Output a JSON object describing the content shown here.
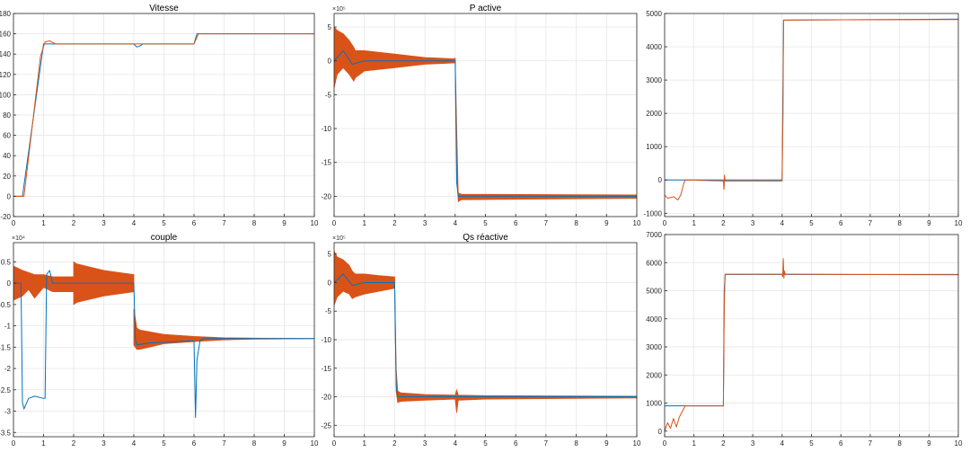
{
  "figure": {
    "background": "#ffffff",
    "axes_bg": "#ffffff",
    "grid_color": "#e3e3e3",
    "axis_color": "#262626"
  },
  "colors": {
    "series_blue": "#0072bd",
    "series_orange": "#d95319"
  },
  "chart_data": [
    {
      "id": "vitesse",
      "type": "line",
      "title": "Vitesse",
      "xlabel": "",
      "ylabel": "",
      "multiplier": "",
      "xlim": [
        0,
        10
      ],
      "ylim": [
        -20,
        180
      ],
      "xticks": [
        0,
        1,
        2,
        3,
        4,
        5,
        6,
        7,
        8,
        9,
        10
      ],
      "yticks": [
        -20,
        0,
        20,
        40,
        60,
        80,
        100,
        120,
        140,
        160,
        180
      ],
      "grid": true,
      "series": [
        {
          "color": "#0072bd",
          "x": [
            0,
            0.3,
            1.0,
            1.2,
            4.0,
            4.1,
            4.2,
            4.3,
            6.0,
            6.1,
            10
          ],
          "y": [
            0,
            0,
            150,
            150,
            150,
            147,
            148,
            150,
            150,
            160,
            160
          ]
        },
        {
          "color": "#d95319",
          "x": [
            0,
            0.35,
            0.9,
            1.05,
            1.2,
            1.4,
            4.0,
            6.0,
            6.15,
            10
          ],
          "y": [
            0,
            0,
            138,
            152,
            153,
            150,
            150,
            150,
            160,
            160
          ]
        }
      ]
    },
    {
      "id": "p-active",
      "type": "line",
      "title": "P active",
      "xlabel": "",
      "ylabel": "",
      "multiplier": "×10⁵",
      "xlim": [
        0,
        10
      ],
      "ylim": [
        -23,
        7
      ],
      "xticks": [
        0,
        1,
        2,
        3,
        4,
        5,
        6,
        7,
        8,
        9,
        10
      ],
      "yticks": [
        -20,
        -15,
        -10,
        -5,
        0,
        5
      ],
      "grid": true,
      "series": [
        {
          "color": "#0072bd",
          "x": [
            0,
            0.3,
            0.6,
            1,
            2,
            3,
            4,
            4.05,
            4.1,
            10
          ],
          "y": [
            0,
            1.5,
            -0.5,
            0,
            0,
            0,
            0,
            -18,
            -20,
            -20
          ]
        }
      ],
      "bands": [
        {
          "color": "#d95319",
          "x": [
            0,
            0.1,
            0.3,
            0.5,
            0.65,
            0.7,
            1.0,
            2.0,
            3.0,
            4.0
          ],
          "lo": [
            -4,
            -2,
            -1,
            -2,
            -3,
            -2.5,
            -1.5,
            -1,
            -0.5,
            -0.3
          ],
          "hi": [
            5,
            4.5,
            4,
            3,
            2,
            1.5,
            1.5,
            1,
            0.5,
            0.3
          ]
        },
        {
          "color": "#d95319",
          "x": [
            4.0,
            4.05,
            4.1,
            4.2,
            10
          ],
          "lo": [
            0,
            -16,
            -20.8,
            -20.5,
            -20.3
          ],
          "hi": [
            0.5,
            -10,
            -19.5,
            -19.7,
            -19.8
          ]
        }
      ]
    },
    {
      "id": "top-right",
      "type": "line",
      "title": "",
      "xlabel": "",
      "ylabel": "",
      "multiplier": "",
      "xlim": [
        0,
        10
      ],
      "ylim": [
        -1100,
        5000
      ],
      "xticks": [
        0,
        1,
        2,
        3,
        4,
        5,
        6,
        7,
        8,
        9,
        10
      ],
      "yticks": [
        -1000,
        0,
        1000,
        2000,
        3000,
        4000,
        5000
      ],
      "grid": true,
      "series": [
        {
          "color": "#0072bd",
          "x": [
            0,
            0.6,
            2.0,
            2.02,
            2.05,
            4.0,
            4.05,
            10
          ],
          "y": [
            0,
            0,
            0,
            0,
            0,
            0,
            4800,
            4830
          ]
        },
        {
          "color": "#d95319",
          "x": [
            0,
            0.1,
            0.3,
            0.45,
            0.55,
            0.65,
            0.7,
            2.0,
            2.02,
            2.04,
            2.06,
            4.0,
            4.03,
            4.05,
            6,
            10
          ],
          "y": [
            -450,
            -550,
            -500,
            -600,
            -450,
            -100,
            0,
            -30,
            -280,
            150,
            -30,
            -30,
            2000,
            4800,
            4810,
            4820
          ]
        }
      ]
    },
    {
      "id": "couple",
      "type": "line",
      "title": "couple",
      "xlabel": "",
      "ylabel": "",
      "multiplier": "×10⁴",
      "xlim": [
        0,
        10
      ],
      "ylim": [
        -3.6,
        0.95
      ],
      "xticks": [
        0,
        1,
        2,
        3,
        4,
        5,
        6,
        7,
        8,
        9,
        10
      ],
      "yticks": [
        -3.5,
        -3,
        -2.5,
        -2,
        -1.5,
        -1,
        -0.5,
        0,
        0.5
      ],
      "grid": true,
      "series": [
        {
          "color": "#0072bd",
          "x": [
            0,
            0.25,
            0.3,
            0.35,
            0.5,
            0.7,
            1.0,
            1.05,
            1.1,
            1.2,
            1.3,
            1.4,
            2,
            4,
            4.05,
            4.1,
            4.5,
            6.0,
            6.05,
            6.1,
            6.2,
            6.3,
            7,
            10
          ],
          "y": [
            0,
            0,
            -2.8,
            -2.95,
            -2.7,
            -2.65,
            -2.7,
            -2.7,
            0.2,
            0.3,
            0,
            0,
            0,
            0,
            -1.3,
            -1.45,
            -1.4,
            -1.35,
            -3.15,
            -1.8,
            -1.35,
            -1.3,
            -1.3,
            -1.3
          ]
        }
      ],
      "bands": [
        {
          "color": "#d95319",
          "x": [
            0,
            0.3,
            0.5,
            0.7,
            1.0,
            1.3,
            2.0
          ],
          "lo": [
            -0.4,
            -0.3,
            -0.15,
            -0.35,
            -0.1,
            -0.2,
            -0.2
          ],
          "hi": [
            0.4,
            0.3,
            0.25,
            0.2,
            0.2,
            0.15,
            0.15
          ]
        },
        {
          "color": "#d95319",
          "x": [
            2.0,
            2.1,
            3.0,
            4.0
          ],
          "lo": [
            -0.5,
            -0.45,
            -0.3,
            -0.2
          ],
          "hi": [
            0.5,
            0.45,
            0.3,
            0.2
          ]
        },
        {
          "color": "#d95319",
          "x": [
            4.0,
            4.1,
            4.2,
            5,
            6,
            7,
            8,
            10
          ],
          "lo": [
            -1.45,
            -1.55,
            -1.55,
            -1.42,
            -1.37,
            -1.33,
            -1.31,
            -1.3
          ],
          "hi": [
            -0.6,
            -1.05,
            -1.1,
            -1.2,
            -1.25,
            -1.28,
            -1.29,
            -1.3
          ]
        }
      ]
    },
    {
      "id": "qs-reactive",
      "type": "line",
      "title": "Qs réactive",
      "xlabel": "",
      "ylabel": "",
      "multiplier": "×10⁵",
      "xlim": [
        0,
        10
      ],
      "ylim": [
        -27,
        7
      ],
      "xticks": [
        0,
        1,
        2,
        3,
        4,
        5,
        6,
        7,
        8,
        9,
        10
      ],
      "yticks": [
        -25,
        -20,
        -15,
        -10,
        -5,
        0,
        5
      ],
      "grid": true,
      "series": [
        {
          "color": "#0072bd",
          "x": [
            0,
            0.3,
            0.6,
            1,
            2,
            2.05,
            2.1,
            10
          ],
          "y": [
            0,
            1.5,
            -0.5,
            0,
            0,
            -18,
            -20,
            -20
          ]
        }
      ],
      "bands": [
        {
          "color": "#d95319",
          "x": [
            0,
            0.1,
            0.3,
            0.5,
            0.6,
            0.7,
            1.0,
            1.5,
            2.0
          ],
          "lo": [
            -4,
            -2.5,
            -1.5,
            -2,
            -2.8,
            -2.5,
            -2,
            -1.5,
            -1
          ],
          "hi": [
            5.5,
            4.5,
            4,
            3,
            2,
            1.5,
            1.5,
            1.2,
            1
          ]
        },
        {
          "color": "#d95319",
          "x": [
            2.0,
            2.05,
            2.1,
            2.2,
            3.0,
            4.0,
            4.05,
            4.1,
            5,
            10
          ],
          "lo": [
            0,
            -19,
            -21,
            -20.8,
            -20.6,
            -20.4,
            -22.8,
            -20.6,
            -20.4,
            -20.2
          ],
          "hi": [
            0.5,
            -15,
            -19,
            -19.3,
            -19.6,
            -19.7,
            -18.8,
            -19.7,
            -19.8,
            -19.9
          ]
        }
      ]
    },
    {
      "id": "bottom-right",
      "type": "line",
      "title": "",
      "xlabel": "",
      "ylabel": "",
      "multiplier": "",
      "xlim": [
        0,
        10
      ],
      "ylim": [
        -200,
        7000
      ],
      "xticks": [
        0,
        1,
        2,
        3,
        4,
        5,
        6,
        7,
        8,
        9,
        10
      ],
      "yticks": [
        0,
        1000,
        2000,
        3000,
        4000,
        5000,
        6000,
        7000
      ],
      "grid": true,
      "series": [
        {
          "color": "#0072bd",
          "x": [
            0,
            0.6,
            0.7,
            2.0,
            2.03,
            2.06,
            10
          ],
          "y": [
            900,
            900,
            900,
            900,
            5000,
            5580,
            5580
          ]
        },
        {
          "color": "#d95319",
          "x": [
            0,
            0.1,
            0.2,
            0.3,
            0.4,
            0.5,
            0.6,
            0.7,
            2.0,
            2.03,
            2.06,
            4.0,
            4.02,
            4.04,
            4.06,
            4.08,
            4.1,
            6,
            10
          ],
          "y": [
            0,
            300,
            100,
            450,
            150,
            500,
            700,
            900,
            900,
            4500,
            5590,
            5590,
            5500,
            6150,
            5450,
            5700,
            5590,
            5580,
            5570
          ]
        }
      ]
    }
  ]
}
